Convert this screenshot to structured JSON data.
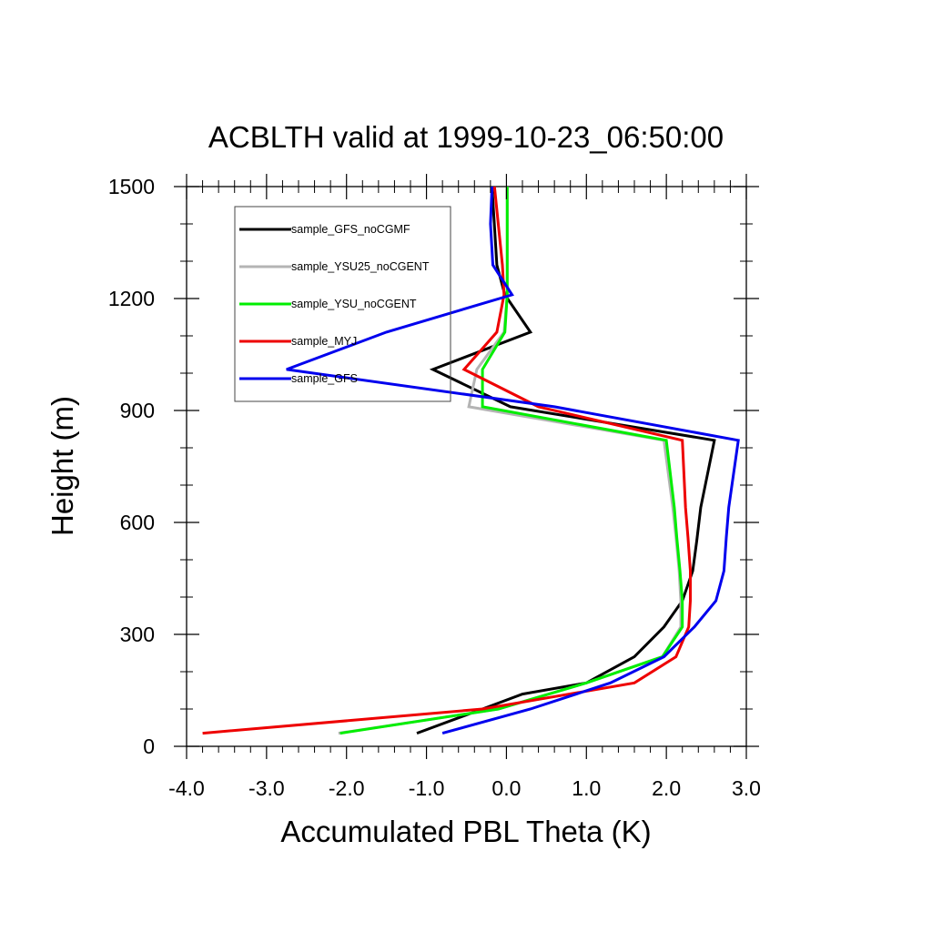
{
  "chart_data": {
    "type": "line",
    "title": "ACBLTH valid at 1999-10-23_06:50:00",
    "xlabel": "Accumulated PBL Theta (K)",
    "ylabel": "Height (m)",
    "xlim": [
      -4.0,
      3.0
    ],
    "ylim": [
      0,
      1500
    ],
    "x_ticks": [
      -4.0,
      -3.0,
      -2.0,
      -1.0,
      0.0,
      1.0,
      2.0,
      3.0
    ],
    "x_tick_labels": [
      "-4.0",
      "-3.0",
      "-2.0",
      "-1.0",
      "0.0",
      "1.0",
      "2.0",
      "3.0"
    ],
    "y_ticks": [
      0,
      300,
      600,
      900,
      1200,
      1500
    ],
    "y_tick_labels": [
      "0",
      "300",
      "600",
      "900",
      "1200",
      "1500"
    ],
    "legend_position": "top-left",
    "grid": false,
    "series": [
      {
        "name": "sample_GFS_noCGMF",
        "color": "#000000",
        "points": [
          [
            -1.12,
            35
          ],
          [
            -0.3,
            100
          ],
          [
            0.2,
            140
          ],
          [
            1.0,
            170
          ],
          [
            1.6,
            240
          ],
          [
            1.97,
            320
          ],
          [
            2.2,
            390
          ],
          [
            2.33,
            470
          ],
          [
            2.38,
            550
          ],
          [
            2.43,
            640
          ],
          [
            2.6,
            820
          ],
          [
            0.05,
            910
          ],
          [
            -0.92,
            1010
          ],
          [
            0.3,
            1110
          ],
          [
            -0.02,
            1210
          ],
          [
            -0.12,
            1290
          ],
          [
            -0.18,
            1500
          ]
        ]
      },
      {
        "name": "sample_YSU25_noCGENT",
        "color": "#b4b4b4",
        "points": [
          [
            -2.1,
            35
          ],
          [
            -0.1,
            100
          ],
          [
            1.0,
            170
          ],
          [
            1.95,
            240
          ],
          [
            2.18,
            320
          ],
          [
            2.18,
            390
          ],
          [
            2.16,
            470
          ],
          [
            2.12,
            560
          ],
          [
            2.08,
            640
          ],
          [
            1.97,
            820
          ],
          [
            -0.47,
            910
          ],
          [
            -0.37,
            1010
          ],
          [
            -0.03,
            1110
          ],
          [
            0.01,
            1210
          ],
          [
            0.01,
            1500
          ]
        ]
      },
      {
        "name": "sample_YSU_noCGENT",
        "color": "#00ee00",
        "points": [
          [
            -2.08,
            35
          ],
          [
            -0.1,
            100
          ],
          [
            1.0,
            170
          ],
          [
            1.95,
            240
          ],
          [
            2.2,
            320
          ],
          [
            2.2,
            390
          ],
          [
            2.17,
            470
          ],
          [
            2.13,
            560
          ],
          [
            2.1,
            640
          ],
          [
            2.0,
            820
          ],
          [
            -0.3,
            910
          ],
          [
            -0.3,
            1010
          ],
          [
            -0.02,
            1110
          ],
          [
            0.01,
            1210
          ],
          [
            0.01,
            1500
          ]
        ]
      },
      {
        "name": "sample_MYJ",
        "color": "#ee0000",
        "points": [
          [
            -3.8,
            35
          ],
          [
            -0.3,
            100
          ],
          [
            1.6,
            170
          ],
          [
            2.12,
            240
          ],
          [
            2.28,
            320
          ],
          [
            2.3,
            390
          ],
          [
            2.3,
            470
          ],
          [
            2.27,
            560
          ],
          [
            2.24,
            640
          ],
          [
            2.2,
            820
          ],
          [
            0.4,
            910
          ],
          [
            -0.53,
            1010
          ],
          [
            -0.12,
            1110
          ],
          [
            -0.03,
            1210
          ],
          [
            -0.05,
            1290
          ],
          [
            -0.15,
            1500
          ]
        ]
      },
      {
        "name": "sample_GFS",
        "color": "#0000ee",
        "points": [
          [
            -0.8,
            35
          ],
          [
            0.3,
            100
          ],
          [
            1.3,
            170
          ],
          [
            1.97,
            240
          ],
          [
            2.35,
            320
          ],
          [
            2.62,
            390
          ],
          [
            2.72,
            470
          ],
          [
            2.75,
            560
          ],
          [
            2.78,
            640
          ],
          [
            2.9,
            820
          ],
          [
            0.6,
            910
          ],
          [
            -2.75,
            1010
          ],
          [
            -1.5,
            1110
          ],
          [
            0.07,
            1210
          ],
          [
            -0.17,
            1290
          ],
          [
            -0.2,
            1400
          ],
          [
            -0.18,
            1500
          ]
        ]
      }
    ]
  }
}
